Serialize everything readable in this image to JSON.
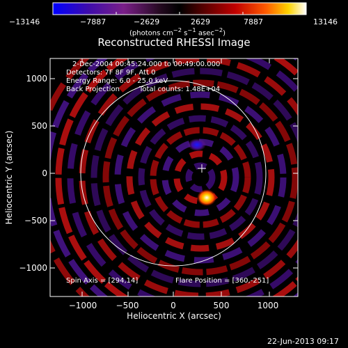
{
  "colorbar": {
    "ticks": [
      "−13146",
      "−7887",
      "−2629",
      "2629",
      "7887",
      "13146"
    ],
    "units_html": "(photons cm<sup>−2</sup> s<sup>−1</sup> asec<sup>−2</sup>)"
  },
  "title": "Reconstructed RHESSI Image",
  "info": {
    "time_range": "2-Dec-2004 00:45:24.000 to 00:49:00.000",
    "detectors": "Detectors: 7F 8F 9F, Att 0",
    "energy": "Energy Range: 6.0 - 25.0 keV",
    "method": "Back Projection",
    "total_counts": "Total counts: 1.48E+04",
    "spin_axis": "Spin Axis = [294,14]",
    "flare_position": "Flare Position = [360,-251]"
  },
  "axes": {
    "xlabel": "Heliocentric X (arcsec)",
    "ylabel": "Heliocentric Y (arcsec)",
    "xticks": [
      "−1000",
      "−500",
      "0",
      "500",
      "1000"
    ],
    "yticks": [
      "1000",
      "500",
      "0",
      "−500",
      "−1000"
    ]
  },
  "footer_timestamp": "22-Jun-2013 09:17",
  "colors": {
    "background": "#000000",
    "foreground": "#ffffff",
    "colormap": [
      "#0000ff",
      "#3e0cab",
      "#7a1f88",
      "#260a22",
      "#000000",
      "#4a0000",
      "#c00000",
      "#ff5a00",
      "#ffd400",
      "#ffffff"
    ]
  }
}
